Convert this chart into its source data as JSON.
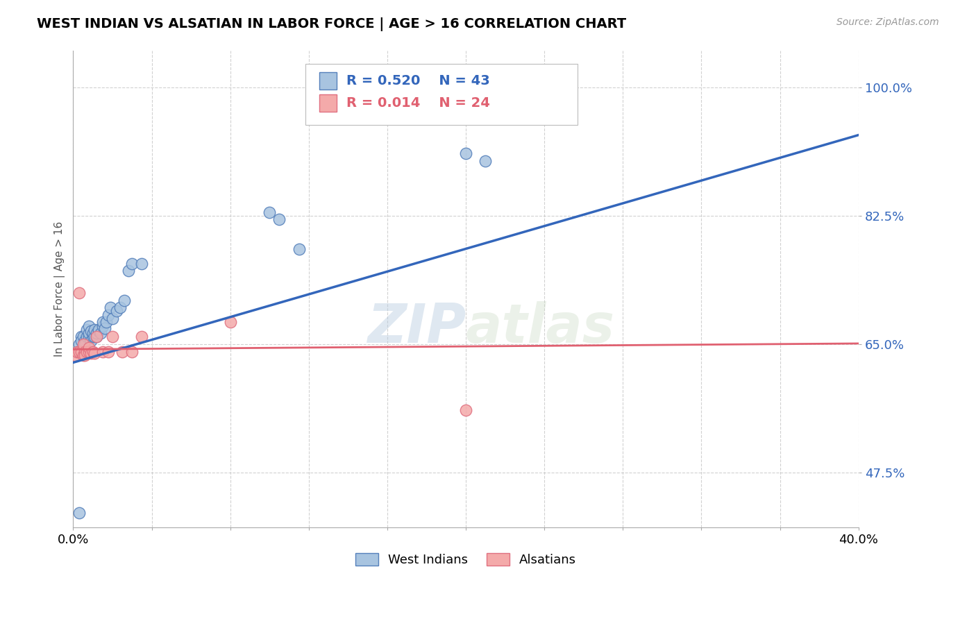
{
  "title": "WEST INDIAN VS ALSATIAN IN LABOR FORCE | AGE > 16 CORRELATION CHART",
  "source_text": "Source: ZipAtlas.com",
  "ylabel": "In Labor Force | Age > 16",
  "xlim": [
    0.0,
    0.4
  ],
  "ylim": [
    0.4,
    1.05
  ],
  "ytick_labels": [
    "47.5%",
    "65.0%",
    "82.5%",
    "100.0%"
  ],
  "ytick_values": [
    0.475,
    0.65,
    0.825,
    1.0
  ],
  "blue_r": "R = 0.520",
  "blue_n": "N = 43",
  "pink_r": "R = 0.014",
  "pink_n": "N = 24",
  "blue_color": "#A8C4E0",
  "pink_color": "#F4AAAA",
  "blue_edge_color": "#5580BB",
  "pink_edge_color": "#E07080",
  "blue_line_color": "#3366BB",
  "pink_line_color": "#E06070",
  "watermark_zip": "ZIP",
  "watermark_atlas": "atlas",
  "west_indians_x": [
    0.002,
    0.003,
    0.004,
    0.004,
    0.005,
    0.005,
    0.006,
    0.006,
    0.007,
    0.007,
    0.008,
    0.008,
    0.008,
    0.009,
    0.009,
    0.01,
    0.01,
    0.011,
    0.011,
    0.012,
    0.012,
    0.013,
    0.013,
    0.014,
    0.015,
    0.015,
    0.016,
    0.017,
    0.018,
    0.019,
    0.02,
    0.022,
    0.024,
    0.026,
    0.028,
    0.03,
    0.035,
    0.1,
    0.105,
    0.115,
    0.2,
    0.21,
    0.003
  ],
  "west_indians_y": [
    0.64,
    0.65,
    0.66,
    0.655,
    0.645,
    0.66,
    0.655,
    0.65,
    0.66,
    0.67,
    0.66,
    0.665,
    0.675,
    0.668,
    0.655,
    0.66,
    0.665,
    0.66,
    0.67,
    0.66,
    0.665,
    0.668,
    0.67,
    0.665,
    0.675,
    0.68,
    0.672,
    0.68,
    0.69,
    0.7,
    0.685,
    0.695,
    0.7,
    0.71,
    0.75,
    0.76,
    0.76,
    0.83,
    0.82,
    0.78,
    0.91,
    0.9,
    0.42
  ],
  "alsatians_x": [
    0.001,
    0.002,
    0.003,
    0.003,
    0.004,
    0.005,
    0.005,
    0.006,
    0.006,
    0.007,
    0.008,
    0.008,
    0.009,
    0.01,
    0.011,
    0.012,
    0.015,
    0.018,
    0.02,
    0.025,
    0.03,
    0.035,
    0.08,
    0.2
  ],
  "alsatians_y": [
    0.635,
    0.64,
    0.64,
    0.72,
    0.64,
    0.635,
    0.65,
    0.64,
    0.635,
    0.64,
    0.64,
    0.645,
    0.638,
    0.64,
    0.638,
    0.66,
    0.64,
    0.64,
    0.66,
    0.64,
    0.64,
    0.66,
    0.68,
    0.56
  ]
}
